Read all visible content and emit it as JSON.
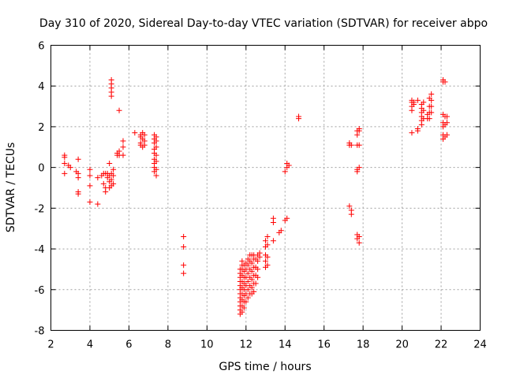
{
  "chart_data": {
    "type": "scatter",
    "title": "Day 310 of 2020, Sidereal Day-to-day VTEC variation (SDTVAR) for receiver abpo",
    "xlabel": "GPS time / hours",
    "ylabel": "SDTVAR / TECUs",
    "xlim": [
      2,
      24
    ],
    "ylim": [
      -8,
      6
    ],
    "xticks": [
      "2",
      "4",
      "6",
      "8",
      "10",
      "12",
      "14",
      "16",
      "18",
      "20",
      "22",
      "24"
    ],
    "yticks": [
      "-8",
      "-6",
      "-4",
      "-2",
      "0",
      "2",
      "4",
      "6"
    ],
    "grid": true,
    "marker": "+",
    "color": "#ff0000",
    "series": [
      {
        "name": "SDTVAR",
        "points": [
          [
            2.7,
            0.6
          ],
          [
            2.7,
            0.5
          ],
          [
            2.7,
            0.2
          ],
          [
            2.7,
            -0.3
          ],
          [
            2.9,
            0.1
          ],
          [
            3.0,
            0.0
          ],
          [
            3.3,
            -0.2
          ],
          [
            3.4,
            0.4
          ],
          [
            3.4,
            -0.3
          ],
          [
            3.4,
            -0.5
          ],
          [
            3.4,
            -1.2
          ],
          [
            3.4,
            -1.3
          ],
          [
            4.0,
            -0.1
          ],
          [
            4.0,
            -0.4
          ],
          [
            4.0,
            -0.9
          ],
          [
            4.0,
            -1.7
          ],
          [
            4.4,
            -0.5
          ],
          [
            4.4,
            -1.8
          ],
          [
            4.6,
            -0.4
          ],
          [
            4.7,
            -0.3
          ],
          [
            4.7,
            -0.8
          ],
          [
            4.8,
            -1.0
          ],
          [
            4.8,
            -1.2
          ],
          [
            4.8,
            -0.3
          ],
          [
            4.9,
            -0.5
          ],
          [
            4.9,
            -0.3
          ],
          [
            5.0,
            -0.4
          ],
          [
            5.0,
            0.2
          ],
          [
            5.0,
            -0.7
          ],
          [
            5.0,
            -1.0
          ],
          [
            5.1,
            4.3
          ],
          [
            5.1,
            4.1
          ],
          [
            5.1,
            3.9
          ],
          [
            5.1,
            3.7
          ],
          [
            5.1,
            3.5
          ],
          [
            5.1,
            -0.3
          ],
          [
            5.1,
            -0.6
          ],
          [
            5.1,
            -0.9
          ],
          [
            5.2,
            -0.1
          ],
          [
            5.2,
            -0.4
          ],
          [
            5.2,
            -0.8
          ],
          [
            5.4,
            0.6
          ],
          [
            5.4,
            0.7
          ],
          [
            5.5,
            0.6
          ],
          [
            5.5,
            2.8
          ],
          [
            5.5,
            0.8
          ],
          [
            5.7,
            1.3
          ],
          [
            5.7,
            1.0
          ],
          [
            5.7,
            0.6
          ],
          [
            6.3,
            1.7
          ],
          [
            6.6,
            1.6
          ],
          [
            6.6,
            1.5
          ],
          [
            6.6,
            1.2
          ],
          [
            6.6,
            1.1
          ],
          [
            6.7,
            1.7
          ],
          [
            6.7,
            1.4
          ],
          [
            6.7,
            1.0
          ],
          [
            6.8,
            1.6
          ],
          [
            6.8,
            1.3
          ],
          [
            6.8,
            1.1
          ],
          [
            7.3,
            1.6
          ],
          [
            7.3,
            1.4
          ],
          [
            7.3,
            1.2
          ],
          [
            7.3,
            0.9
          ],
          [
            7.3,
            0.7
          ],
          [
            7.3,
            0.4
          ],
          [
            7.3,
            0.2
          ],
          [
            7.3,
            0.0
          ],
          [
            7.3,
            -0.2
          ],
          [
            7.4,
            1.5
          ],
          [
            7.4,
            1.3
          ],
          [
            7.4,
            1.0
          ],
          [
            7.4,
            0.6
          ],
          [
            7.4,
            0.3
          ],
          [
            7.4,
            -0.1
          ],
          [
            7.4,
            -0.4
          ],
          [
            8.8,
            -3.4
          ],
          [
            8.8,
            -3.9
          ],
          [
            8.8,
            -4.8
          ],
          [
            8.8,
            -5.2
          ],
          [
            11.7,
            -7.2
          ],
          [
            11.7,
            -7.0
          ],
          [
            11.7,
            -6.8
          ],
          [
            11.7,
            -6.6
          ],
          [
            11.7,
            -6.4
          ],
          [
            11.7,
            -6.2
          ],
          [
            11.7,
            -6.0
          ],
          [
            11.7,
            -5.8
          ],
          [
            11.7,
            -5.6
          ],
          [
            11.7,
            -5.4
          ],
          [
            11.7,
            -5.2
          ],
          [
            11.7,
            -5.0
          ],
          [
            11.8,
            -7.1
          ],
          [
            11.8,
            -6.8
          ],
          [
            11.8,
            -6.5
          ],
          [
            11.8,
            -6.2
          ],
          [
            11.8,
            -5.9
          ],
          [
            11.8,
            -5.6
          ],
          [
            11.8,
            -5.3
          ],
          [
            11.8,
            -5.0
          ],
          [
            11.8,
            -4.8
          ],
          [
            11.8,
            -4.6
          ],
          [
            11.9,
            -6.9
          ],
          [
            11.9,
            -6.6
          ],
          [
            11.9,
            -6.3
          ],
          [
            11.9,
            -6.0
          ],
          [
            11.9,
            -5.7
          ],
          [
            11.9,
            -5.4
          ],
          [
            11.9,
            -5.1
          ],
          [
            11.9,
            -4.8
          ],
          [
            12.0,
            -6.6
          ],
          [
            12.0,
            -6.2
          ],
          [
            12.0,
            -5.8
          ],
          [
            12.0,
            -5.4
          ],
          [
            12.0,
            -5.0
          ],
          [
            12.0,
            -4.7
          ],
          [
            12.1,
            -6.4
          ],
          [
            12.1,
            -6.0
          ],
          [
            12.1,
            -5.6
          ],
          [
            12.1,
            -5.2
          ],
          [
            12.1,
            -4.8
          ],
          [
            12.1,
            -4.5
          ],
          [
            12.2,
            -6.2
          ],
          [
            12.2,
            -5.8
          ],
          [
            12.2,
            -5.4
          ],
          [
            12.2,
            -5.0
          ],
          [
            12.2,
            -4.6
          ],
          [
            12.2,
            -4.3
          ],
          [
            12.3,
            -6.2
          ],
          [
            12.3,
            -5.9
          ],
          [
            12.3,
            -5.5
          ],
          [
            12.3,
            -5.1
          ],
          [
            12.3,
            -4.7
          ],
          [
            12.3,
            -4.3
          ],
          [
            12.4,
            -6.1
          ],
          [
            12.4,
            -5.7
          ],
          [
            12.4,
            -5.3
          ],
          [
            12.4,
            -4.9
          ],
          [
            12.4,
            -4.5
          ],
          [
            12.4,
            -4.3
          ],
          [
            12.5,
            -5.7
          ],
          [
            12.5,
            -5.3
          ],
          [
            12.5,
            -4.9
          ],
          [
            12.5,
            -4.5
          ],
          [
            12.6,
            -5.4
          ],
          [
            12.6,
            -5.0
          ],
          [
            12.6,
            -4.6
          ],
          [
            12.6,
            -4.3
          ],
          [
            12.7,
            -4.4
          ],
          [
            12.7,
            -4.2
          ],
          [
            13.0,
            -4.9
          ],
          [
            13.0,
            -4.6
          ],
          [
            13.0,
            -4.3
          ],
          [
            13.0,
            -3.9
          ],
          [
            13.0,
            -3.6
          ],
          [
            13.1,
            -4.8
          ],
          [
            13.1,
            -4.4
          ],
          [
            13.1,
            -3.8
          ],
          [
            13.1,
            -3.4
          ],
          [
            13.4,
            -2.7
          ],
          [
            13.4,
            -2.5
          ],
          [
            13.4,
            -3.6
          ],
          [
            13.7,
            -3.2
          ],
          [
            13.8,
            -3.1
          ],
          [
            14.0,
            -0.2
          ],
          [
            14.0,
            -2.6
          ],
          [
            14.1,
            0.0
          ],
          [
            14.1,
            0.2
          ],
          [
            14.1,
            -2.5
          ],
          [
            14.2,
            0.1
          ],
          [
            14.7,
            2.5
          ],
          [
            14.7,
            2.4
          ],
          [
            17.3,
            1.2
          ],
          [
            17.3,
            1.1
          ],
          [
            17.3,
            -1.9
          ],
          [
            17.4,
            1.1
          ],
          [
            17.4,
            -2.1
          ],
          [
            17.4,
            -2.3
          ],
          [
            17.7,
            1.8
          ],
          [
            17.7,
            1.6
          ],
          [
            17.7,
            1.1
          ],
          [
            17.7,
            -0.1
          ],
          [
            17.7,
            -0.2
          ],
          [
            17.7,
            -3.3
          ],
          [
            17.7,
            -3.5
          ],
          [
            17.8,
            1.9
          ],
          [
            17.8,
            1.8
          ],
          [
            17.8,
            1.1
          ],
          [
            17.8,
            0.0
          ],
          [
            17.8,
            -3.4
          ],
          [
            17.8,
            -3.7
          ],
          [
            20.5,
            3.3
          ],
          [
            20.5,
            3.2
          ],
          [
            20.5,
            3.0
          ],
          [
            20.5,
            2.8
          ],
          [
            20.5,
            1.7
          ],
          [
            20.6,
            3.2
          ],
          [
            20.6,
            3.1
          ],
          [
            20.8,
            3.3
          ],
          [
            20.8,
            1.8
          ],
          [
            20.8,
            1.9
          ],
          [
            21.0,
            3.1
          ],
          [
            21.0,
            2.9
          ],
          [
            21.0,
            2.7
          ],
          [
            21.0,
            2.5
          ],
          [
            21.0,
            2.3
          ],
          [
            21.0,
            2.1
          ],
          [
            21.1,
            3.2
          ],
          [
            21.1,
            2.8
          ],
          [
            21.1,
            2.4
          ],
          [
            21.3,
            2.6
          ],
          [
            21.3,
            2.4
          ],
          [
            21.4,
            3.4
          ],
          [
            21.4,
            3.0
          ],
          [
            21.4,
            2.7
          ],
          [
            21.4,
            2.4
          ],
          [
            21.5,
            3.6
          ],
          [
            21.5,
            3.3
          ],
          [
            21.5,
            3.0
          ],
          [
            21.5,
            2.7
          ],
          [
            22.1,
            4.3
          ],
          [
            22.1,
            4.2
          ],
          [
            22.1,
            2.6
          ],
          [
            22.1,
            2.2
          ],
          [
            22.1,
            2.0
          ],
          [
            22.1,
            1.6
          ],
          [
            22.1,
            1.4
          ],
          [
            22.2,
            4.2
          ],
          [
            22.2,
            2.5
          ],
          [
            22.2,
            2.1
          ],
          [
            22.2,
            1.5
          ],
          [
            22.3,
            2.5
          ],
          [
            22.3,
            2.2
          ],
          [
            22.3,
            1.6
          ]
        ]
      }
    ]
  }
}
